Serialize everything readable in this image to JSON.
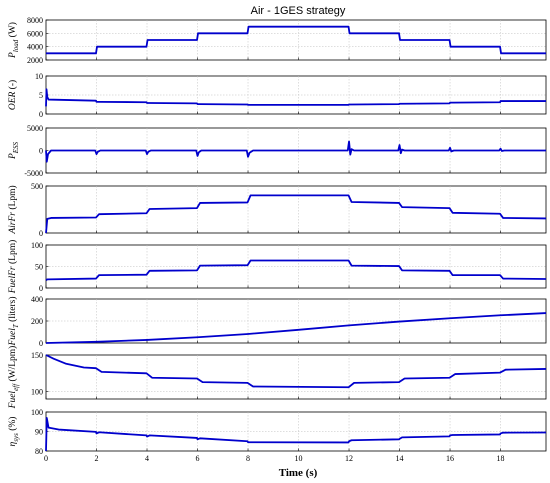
{
  "figure_title": "Air - 1GES strategy",
  "chart_data": [
    {
      "type": "line",
      "id": "pload",
      "ylabel_main": "P",
      "ylabel_sub": "load",
      "ylabel_tail": " (W)",
      "ylim": [
        2000,
        8000
      ],
      "yticks": [
        2000,
        4000,
        6000,
        8000
      ],
      "xlim": [
        0,
        19.8
      ],
      "xticks": [
        0,
        2,
        4,
        6,
        8,
        10,
        12,
        14,
        16,
        18
      ],
      "show_xticks": false,
      "x": [
        0,
        1.98,
        2.02,
        3.98,
        4.02,
        5.98,
        6.02,
        7.98,
        8.02,
        11.98,
        12.02,
        13.98,
        14.02,
        15.98,
        16.02,
        17.98,
        18.02,
        19.8
      ],
      "y": [
        3000,
        3000,
        4000,
        4000,
        5000,
        5000,
        6000,
        6000,
        7000,
        7000,
        6000,
        6000,
        5000,
        5000,
        4000,
        4000,
        3000,
        3000
      ]
    },
    {
      "type": "line",
      "id": "oer",
      "ylabel_main": "OER",
      "ylabel_sub": "",
      "ylabel_tail": " (-)",
      "ylim": [
        0,
        10
      ],
      "yticks": [
        0,
        5,
        10
      ],
      "xlim": [
        0,
        19.8
      ],
      "xticks": [
        0,
        2,
        4,
        6,
        8,
        10,
        12,
        14,
        16,
        18
      ],
      "show_xticks": false,
      "x": [
        0,
        0.02,
        0.05,
        0.1,
        1.98,
        2.0,
        2.1,
        3.98,
        4.0,
        4.1,
        5.98,
        6.0,
        6.1,
        7.98,
        8.0,
        8.1,
        11.98,
        12.0,
        12.1,
        13.98,
        14.0,
        14.1,
        15.98,
        16.0,
        16.1,
        17.98,
        18.0,
        18.1,
        19.8
      ],
      "y": [
        2.0,
        6.5,
        4.5,
        3.8,
        3.5,
        3.2,
        3.2,
        3.1,
        2.9,
        2.9,
        2.8,
        2.6,
        2.6,
        2.5,
        2.4,
        2.4,
        2.4,
        2.5,
        2.5,
        2.6,
        2.7,
        2.7,
        2.8,
        3.0,
        3.0,
        3.1,
        3.4,
        3.4,
        3.4
      ]
    },
    {
      "type": "line",
      "id": "pess",
      "ylabel_main": "P",
      "ylabel_sub": "ESS",
      "ylabel_tail": "",
      "ylim": [
        -5000,
        5000
      ],
      "yticks": [
        -5000,
        0,
        5000
      ],
      "xlim": [
        0,
        19.8
      ],
      "xticks": [
        0,
        2,
        4,
        6,
        8,
        10,
        12,
        14,
        16,
        18
      ],
      "show_xticks": false,
      "x": [
        0,
        0.03,
        0.08,
        0.2,
        1.95,
        2.0,
        2.05,
        2.15,
        3.95,
        4.0,
        4.05,
        4.15,
        5.95,
        6.0,
        6.05,
        6.15,
        7.95,
        8.0,
        8.06,
        8.2,
        11.95,
        12.0,
        12.05,
        12.1,
        12.2,
        13.95,
        14.0,
        14.05,
        14.1,
        14.2,
        15.95,
        16.0,
        16.05,
        16.15,
        17.95,
        18.0,
        18.05,
        18.15,
        19.8
      ],
      "y": [
        0,
        -2500,
        -800,
        0,
        0,
        -800,
        -300,
        0,
        0,
        -800,
        -300,
        0,
        0,
        -1200,
        -400,
        0,
        0,
        -1400,
        -500,
        0,
        0,
        2000,
        -900,
        300,
        0,
        0,
        1200,
        -600,
        200,
        0,
        0,
        600,
        -200,
        0,
        0,
        400,
        -100,
        0,
        0
      ]
    },
    {
      "type": "line",
      "id": "airfr",
      "ylabel_main": "AirFr",
      "ylabel_sub": "",
      "ylabel_tail": " (Lpm)",
      "ylim": [
        0,
        500
      ],
      "yticks": [
        0,
        500
      ],
      "xlim": [
        0,
        19.8
      ],
      "xticks": [
        0,
        2,
        4,
        6,
        8,
        10,
        12,
        14,
        16,
        18
      ],
      "show_xticks": false,
      "x": [
        0,
        0.05,
        0.2,
        1.98,
        2.1,
        3.98,
        4.1,
        5.98,
        6.1,
        7.98,
        8.1,
        11.98,
        12.1,
        13.98,
        14.1,
        15.98,
        16.1,
        17.98,
        18.1,
        19.8
      ],
      "y": [
        0,
        150,
        160,
        165,
        200,
        210,
        255,
        265,
        320,
        325,
        400,
        400,
        330,
        320,
        275,
        265,
        215,
        205,
        160,
        155
      ]
    },
    {
      "type": "line",
      "id": "fuelfr",
      "ylabel_main": "FuelFr",
      "ylabel_sub": "",
      "ylabel_tail": " (Lpm)",
      "ylim": [
        0,
        100
      ],
      "yticks": [
        0,
        50,
        100
      ],
      "xlim": [
        0,
        19.8
      ],
      "xticks": [
        0,
        2,
        4,
        6,
        8,
        10,
        12,
        14,
        16,
        18
      ],
      "show_xticks": false,
      "x": [
        0,
        0.05,
        1.98,
        2.1,
        3.98,
        4.1,
        5.98,
        6.1,
        7.98,
        8.1,
        11.98,
        12.1,
        13.98,
        14.1,
        15.98,
        16.1,
        17.98,
        18.1,
        19.8
      ],
      "y": [
        18,
        20,
        22,
        30,
        31,
        40,
        41,
        52,
        53,
        64,
        64,
        52,
        51,
        41,
        40,
        30,
        30,
        22,
        21
      ]
    },
    {
      "type": "line",
      "id": "fuelt",
      "ylabel_main": "Fuel",
      "ylabel_sub": "T",
      "ylabel_tail": " (liters)",
      "ylim": [
        0,
        400
      ],
      "yticks": [
        0,
        200,
        400
      ],
      "xlim": [
        0,
        19.8
      ],
      "xticks": [
        0,
        2,
        4,
        6,
        8,
        10,
        12,
        14,
        16,
        18
      ],
      "show_xticks": false,
      "x": [
        0,
        2,
        4,
        6,
        8,
        10,
        12,
        14,
        16,
        18,
        19.8
      ],
      "y": [
        0,
        11,
        28,
        52,
        82,
        120,
        160,
        195,
        225,
        252,
        272
      ]
    },
    {
      "type": "line",
      "id": "fuelcf",
      "ylabel_main": "Fuel",
      "ylabel_sub": "eff",
      "ylabel_tail": " (W/Lpm)",
      "ylim": [
        90,
        150
      ],
      "yticks": [
        100,
        150
      ],
      "xlim": [
        0,
        19.8
      ],
      "xticks": [
        0,
        2,
        4,
        6,
        8,
        10,
        12,
        14,
        16,
        18
      ],
      "show_xticks": false,
      "x": [
        0,
        0.3,
        0.8,
        1.5,
        1.98,
        2.2,
        3.98,
        4.2,
        5.98,
        6.2,
        7.98,
        8.2,
        11.98,
        12.2,
        13.98,
        14.2,
        15.98,
        16.2,
        17.98,
        18.2,
        19.8
      ],
      "y": [
        150,
        145,
        138,
        133,
        132,
        127,
        125,
        119,
        118,
        113,
        112,
        107,
        106,
        112,
        113,
        118,
        119,
        124,
        126,
        130,
        131
      ]
    },
    {
      "type": "line",
      "id": "eta",
      "ylabel_main": "η",
      "ylabel_sub": "sys",
      "ylabel_tail": " (%)",
      "ylim": [
        80,
        100
      ],
      "yticks": [
        80,
        90,
        100
      ],
      "xlim": [
        0,
        19.8
      ],
      "xticks": [
        0,
        2,
        4,
        6,
        8,
        10,
        12,
        14,
        16,
        18
      ],
      "show_xticks": true,
      "x": [
        0,
        0.03,
        0.1,
        0.5,
        1.98,
        2.0,
        2.1,
        3.98,
        4.0,
        4.1,
        5.98,
        6.0,
        6.1,
        7.98,
        8.0,
        8.1,
        11.98,
        12.0,
        12.1,
        13.98,
        14.0,
        14.1,
        15.98,
        16.0,
        16.1,
        17.98,
        18.0,
        18.1,
        19.8
      ],
      "y": [
        80,
        97,
        92,
        91,
        89.8,
        89,
        89.6,
        88,
        87.4,
        88,
        86.7,
        86,
        86.5,
        85,
        84.5,
        84.5,
        84.4,
        85,
        85.5,
        86,
        86.2,
        87,
        87.5,
        88,
        88.2,
        88.5,
        89,
        89.4,
        89.5
      ]
    }
  ],
  "xlabel": "Time (s)"
}
